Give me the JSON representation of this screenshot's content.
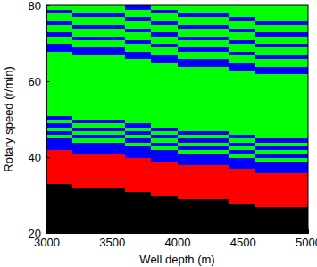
{
  "chart_data": {
    "type": "heatmap",
    "x_label": "Well depth (m)",
    "y_label": "Rotary speed (r/min)",
    "xlim": [
      3000,
      5000
    ],
    "ylim": [
      20,
      80
    ],
    "xticks": [
      3000,
      3500,
      4000,
      4500,
      5000
    ],
    "yticks": [
      20,
      40,
      60,
      80
    ],
    "colors": [
      "#000000",
      "#ff0000",
      "#0000ff",
      "#00ff00"
    ],
    "x": [
      3100,
      3300,
      3500,
      3700,
      3900,
      4100,
      4300,
      4500,
      4700,
      4900
    ],
    "y": [
      20.5,
      21.5,
      22.5,
      23.5,
      24.5,
      25.5,
      26.5,
      27.5,
      28.5,
      29.5,
      30.5,
      31.5,
      32.5,
      33.5,
      34.5,
      35.5,
      36.5,
      37.5,
      38.5,
      39.5,
      40.5,
      41.5,
      42.5,
      43.5,
      44.5,
      45.5,
      46.5,
      47.5,
      48.5,
      49.5,
      50.5,
      51.5,
      52.5,
      53.5,
      54.5,
      55.5,
      56.5,
      57.5,
      58.5,
      59.5,
      60.5,
      61.5,
      62.5,
      63.5,
      64.5,
      65.5,
      66.5,
      67.5,
      68.5,
      69.5,
      70.5,
      71.5,
      72.5,
      73.5,
      74.5,
      75.5,
      76.5,
      77.5,
      78.5,
      79.5
    ],
    "cells": [
      [
        0,
        0,
        0,
        0,
        0,
        0,
        0,
        0,
        0,
        0
      ],
      [
        0,
        0,
        0,
        0,
        0,
        0,
        0,
        0,
        0,
        0
      ],
      [
        0,
        0,
        0,
        0,
        0,
        0,
        0,
        0,
        0,
        0
      ],
      [
        0,
        0,
        0,
        0,
        0,
        0,
        0,
        0,
        0,
        0
      ],
      [
        0,
        0,
        0,
        0,
        0,
        0,
        0,
        0,
        0,
        0
      ],
      [
        0,
        0,
        0,
        0,
        0,
        0,
        0,
        0,
        0,
        0
      ],
      [
        0,
        0,
        0,
        0,
        0,
        0,
        0,
        0,
        0,
        0
      ],
      [
        0,
        0,
        0,
        0,
        0,
        0,
        0,
        0,
        1,
        1
      ],
      [
        0,
        0,
        0,
        0,
        0,
        0,
        0,
        1,
        1,
        1
      ],
      [
        0,
        0,
        0,
        0,
        0,
        1,
        1,
        1,
        1,
        1
      ],
      [
        0,
        0,
        0,
        0,
        1,
        1,
        1,
        1,
        1,
        1
      ],
      [
        0,
        0,
        0,
        1,
        1,
        1,
        1,
        1,
        1,
        1
      ],
      [
        0,
        1,
        1,
        1,
        1,
        1,
        1,
        1,
        1,
        1
      ],
      [
        1,
        1,
        1,
        1,
        1,
        1,
        1,
        1,
        1,
        1
      ],
      [
        1,
        1,
        1,
        1,
        1,
        1,
        1,
        1,
        1,
        1
      ],
      [
        1,
        1,
        1,
        1,
        1,
        1,
        1,
        1,
        1,
        1
      ],
      [
        1,
        1,
        1,
        1,
        1,
        1,
        1,
        1,
        2,
        2
      ],
      [
        1,
        1,
        1,
        1,
        1,
        1,
        1,
        2,
        2,
        2
      ],
      [
        1,
        1,
        1,
        1,
        1,
        2,
        2,
        2,
        2,
        2
      ],
      [
        1,
        1,
        1,
        1,
        2,
        2,
        2,
        2,
        3,
        3
      ],
      [
        1,
        1,
        1,
        2,
        2,
        2,
        2,
        3,
        2,
        2
      ],
      [
        1,
        2,
        2,
        2,
        2,
        3,
        3,
        2,
        3,
        3
      ],
      [
        2,
        2,
        2,
        2,
        3,
        2,
        2,
        3,
        2,
        2
      ],
      [
        2,
        2,
        2,
        3,
        2,
        3,
        3,
        2,
        3,
        3
      ],
      [
        2,
        3,
        3,
        2,
        3,
        2,
        2,
        3,
        2,
        2
      ],
      [
        3,
        2,
        2,
        3,
        2,
        3,
        3,
        2,
        3,
        3
      ],
      [
        2,
        3,
        3,
        2,
        3,
        2,
        2,
        3,
        3,
        3
      ],
      [
        3,
        2,
        2,
        3,
        2,
        3,
        3,
        3,
        3,
        3
      ],
      [
        2,
        3,
        3,
        2,
        3,
        3,
        3,
        3,
        3,
        3
      ],
      [
        3,
        2,
        2,
        3,
        3,
        3,
        3,
        3,
        3,
        3
      ],
      [
        2,
        3,
        3,
        3,
        3,
        3,
        3,
        3,
        3,
        3
      ],
      [
        3,
        3,
        3,
        3,
        3,
        3,
        3,
        3,
        3,
        3
      ],
      [
        3,
        3,
        3,
        3,
        3,
        3,
        3,
        3,
        3,
        3
      ],
      [
        3,
        3,
        3,
        3,
        3,
        3,
        3,
        3,
        3,
        3
      ],
      [
        3,
        3,
        3,
        3,
        3,
        3,
        3,
        3,
        3,
        3
      ],
      [
        3,
        3,
        3,
        3,
        3,
        3,
        3,
        3,
        3,
        3
      ],
      [
        3,
        3,
        3,
        3,
        3,
        3,
        3,
        3,
        3,
        3
      ],
      [
        3,
        3,
        3,
        3,
        3,
        3,
        3,
        3,
        3,
        3
      ],
      [
        3,
        3,
        3,
        3,
        3,
        3,
        3,
        3,
        3,
        3
      ],
      [
        3,
        3,
        3,
        3,
        3,
        3,
        3,
        3,
        3,
        3
      ],
      [
        3,
        3,
        3,
        3,
        3,
        3,
        3,
        3,
        3,
        3
      ],
      [
        3,
        3,
        3,
        3,
        3,
        3,
        3,
        3,
        3,
        3
      ],
      [
        3,
        3,
        3,
        3,
        3,
        3,
        3,
        3,
        2,
        2
      ],
      [
        3,
        3,
        3,
        3,
        3,
        3,
        3,
        2,
        2,
        2
      ],
      [
        3,
        3,
        3,
        3,
        3,
        2,
        2,
        2,
        3,
        3
      ],
      [
        3,
        3,
        3,
        3,
        2,
        2,
        2,
        3,
        3,
        3
      ],
      [
        3,
        3,
        3,
        2,
        2,
        3,
        3,
        3,
        2,
        2
      ],
      [
        3,
        2,
        2,
        2,
        3,
        3,
        3,
        2,
        3,
        3
      ],
      [
        2,
        2,
        2,
        3,
        3,
        2,
        2,
        3,
        3,
        3
      ],
      [
        2,
        3,
        3,
        3,
        2,
        3,
        3,
        3,
        2,
        2
      ],
      [
        3,
        3,
        3,
        2,
        3,
        3,
        3,
        2,
        3,
        3
      ],
      [
        3,
        2,
        2,
        3,
        3,
        2,
        2,
        3,
        3,
        3
      ],
      [
        2,
        3,
        3,
        3,
        2,
        3,
        3,
        3,
        2,
        2
      ],
      [
        3,
        3,
        3,
        2,
        3,
        3,
        3,
        2,
        3,
        3
      ],
      [
        3,
        2,
        2,
        3,
        3,
        2,
        2,
        3,
        3,
        3
      ],
      [
        2,
        3,
        3,
        3,
        2,
        3,
        3,
        3,
        2,
        2
      ],
      [
        3,
        3,
        3,
        2,
        3,
        3,
        3,
        2,
        3,
        3
      ],
      [
        3,
        2,
        2,
        3,
        3,
        2,
        2,
        3,
        3,
        3
      ],
      [
        2,
        3,
        3,
        3,
        2,
        3,
        3,
        3,
        3,
        3
      ],
      [
        3,
        3,
        3,
        2,
        3,
        3,
        3,
        3,
        3,
        3
      ]
    ]
  }
}
